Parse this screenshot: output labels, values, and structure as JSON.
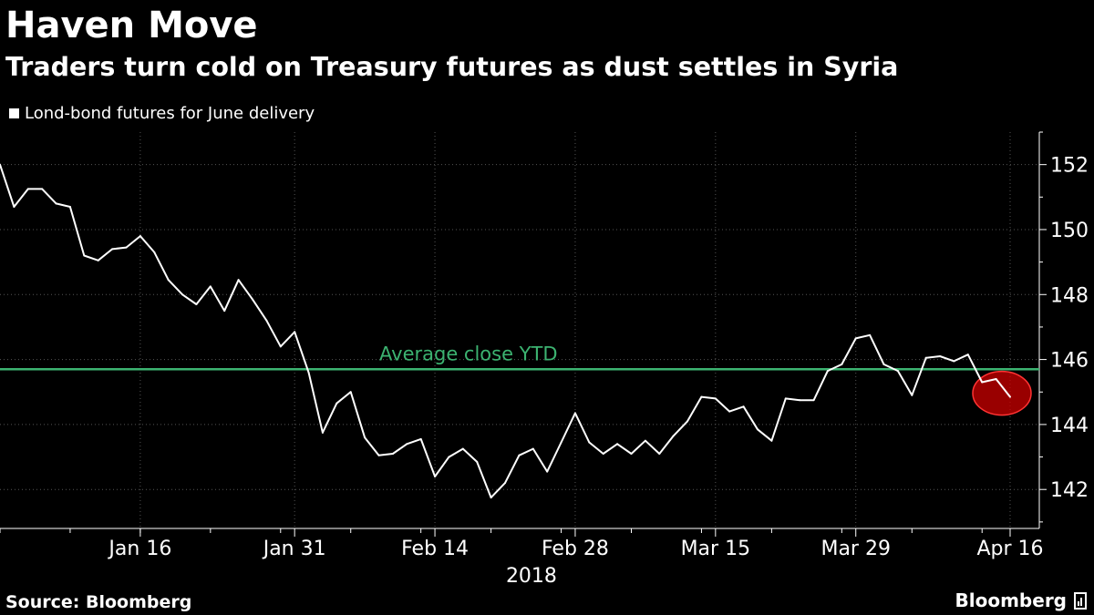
{
  "title": "Haven Move",
  "subtitle": "Traders turn cold on Treasury futures as dust settles in Syria",
  "source": "Source: Bloomberg",
  "brand": "Bloomberg",
  "colors": {
    "background": "#000000",
    "line": "#ffffff",
    "average": "#3cb371",
    "highlight": "#cc0000"
  },
  "chart_data": {
    "type": "line",
    "series": [
      {
        "name": "Lond-bond futures for June delivery",
        "values": [
          152.0,
          150.7,
          151.25,
          151.25,
          150.8,
          150.7,
          149.2,
          149.05,
          149.4,
          149.45,
          149.8,
          149.3,
          148.45,
          148.0,
          147.7,
          148.25,
          147.5,
          148.45,
          147.85,
          147.2,
          146.4,
          146.85,
          145.6,
          143.75,
          144.65,
          145.0,
          143.6,
          143.05,
          143.1,
          143.4,
          143.55,
          142.4,
          143.0,
          143.25,
          142.85,
          141.75,
          142.2,
          143.05,
          143.25,
          142.55,
          143.45,
          144.35,
          143.45,
          143.1,
          143.4,
          143.1,
          143.5,
          143.1,
          143.65,
          144.1,
          144.85,
          144.8,
          144.4,
          144.55,
          143.85,
          143.5,
          144.8,
          144.75,
          144.75,
          145.65,
          145.85,
          146.65,
          146.75,
          145.85,
          145.65,
          144.9,
          146.05,
          146.1,
          145.95,
          146.15,
          145.3,
          145.4,
          144.85
        ]
      }
    ],
    "reference_line": {
      "label": "Average close YTD",
      "value": 145.7
    },
    "highlight": {
      "label": "",
      "index": 72
    },
    "x_tick_labels": [
      "Jan 16",
      "Jan 31",
      "Feb 14",
      "Feb 28",
      "Mar 15",
      "Mar 29",
      "Apr 16"
    ],
    "x_tick_index": [
      10,
      21,
      31,
      41,
      51,
      61,
      72
    ],
    "x_year_label": "2018",
    "y_ticks": [
      142,
      144,
      146,
      148,
      150,
      152
    ],
    "ylim": [
      140.8,
      153.0
    ],
    "grid": true,
    "y_axis_side": "right"
  }
}
